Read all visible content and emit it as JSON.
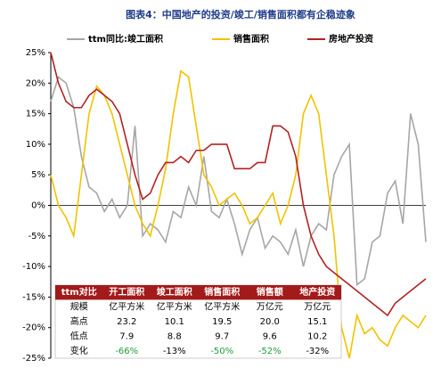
{
  "chart_data": {
    "type": "line",
    "title": "图表4：中国地产的投资/竣工/销售面积都有企稳迹象",
    "categories": [
      null,
      null,
      null,
      null,
      null,
      null,
      null,
      null,
      null,
      null,
      null,
      null,
      null,
      null,
      null,
      null,
      null,
      null,
      null,
      null,
      null,
      null,
      null,
      null,
      null,
      null,
      null,
      null,
      null,
      null,
      null,
      null,
      null,
      null,
      null,
      null,
      null,
      null,
      null,
      null,
      null,
      null,
      null,
      null,
      null,
      null,
      null,
      null,
      null,
      null
    ],
    "ylim": [
      -25,
      25
    ],
    "yticks": [
      {
        "value": 25,
        "label": "25%"
      },
      {
        "value": 20,
        "label": "20%"
      },
      {
        "value": 15,
        "label": "15%"
      },
      {
        "value": 10,
        "label": "10%"
      },
      {
        "value": 5,
        "label": "5%"
      },
      {
        "value": 0,
        "label": "0%"
      },
      {
        "value": -5,
        "label": "-5%"
      },
      {
        "value": -10,
        "label": "-10%"
      },
      {
        "value": -15,
        "label": "-15%"
      },
      {
        "value": -20,
        "label": "-20%"
      },
      {
        "value": -25,
        "label": "-25%"
      }
    ],
    "series": [
      {
        "name": "ttm同比:竣工面积",
        "color": "#a6a6a6",
        "values": [
          17,
          21,
          20,
          16,
          8,
          3,
          2,
          -1,
          1,
          -2,
          0,
          13,
          -5,
          -3,
          -4,
          -6,
          -1,
          -2,
          3,
          0,
          8,
          -1,
          -2,
          1,
          -3,
          -8,
          -4,
          -2,
          -7,
          -5,
          -6,
          -8,
          -4,
          -10,
          -5,
          -3,
          -4,
          5,
          8,
          10,
          -13,
          -12,
          -6,
          -5,
          2,
          4,
          -3,
          15,
          10,
          -6
        ]
      },
      {
        "name": "销售面积",
        "color": "#f2c200",
        "values": [
          5,
          0,
          -2,
          -5,
          5,
          15,
          19.5,
          18,
          15,
          10,
          5,
          0,
          -3,
          -5,
          0,
          6,
          15,
          22,
          21,
          13,
          5,
          3,
          0,
          1,
          2,
          0,
          -3,
          -2,
          0,
          2,
          -3,
          0,
          5,
          15,
          18,
          15,
          5,
          -5,
          -20,
          -25,
          -18,
          -21,
          -20,
          -22,
          -23,
          -20,
          -18,
          -19,
          -20,
          -18
        ]
      },
      {
        "name": "房地产投资",
        "color": "#b22222",
        "values": [
          25,
          20,
          17,
          16,
          16,
          18,
          19,
          18,
          17,
          15,
          10,
          5,
          1,
          2,
          5,
          7,
          7,
          8,
          7,
          9,
          9,
          10,
          10,
          10,
          6,
          6,
          6,
          7,
          7,
          13,
          13,
          12,
          8,
          0,
          -5,
          -8,
          -10,
          -11,
          -12,
          -13,
          -14,
          -15,
          -16,
          -17,
          -18,
          -16,
          -15,
          -14,
          -13,
          -12
        ]
      }
    ],
    "table": {
      "header": [
        "ttm对比",
        "开工面积",
        "竣工面积",
        "销售面积",
        "销售额",
        "地产投资"
      ],
      "rows": [
        [
          "规模",
          "亿平方米",
          "亿平方米",
          "亿平方米",
          "万亿元",
          "万亿元"
        ],
        [
          "高点",
          "23.2",
          "10.1",
          "19.5",
          "20.0",
          "15.1"
        ],
        [
          "低点",
          "7.9",
          "8.8",
          "9.7",
          "9.6",
          "10.2"
        ],
        [
          "变化",
          "-66%",
          "-13%",
          "-50%",
          "-52%",
          "-32%"
        ]
      ]
    }
  }
}
